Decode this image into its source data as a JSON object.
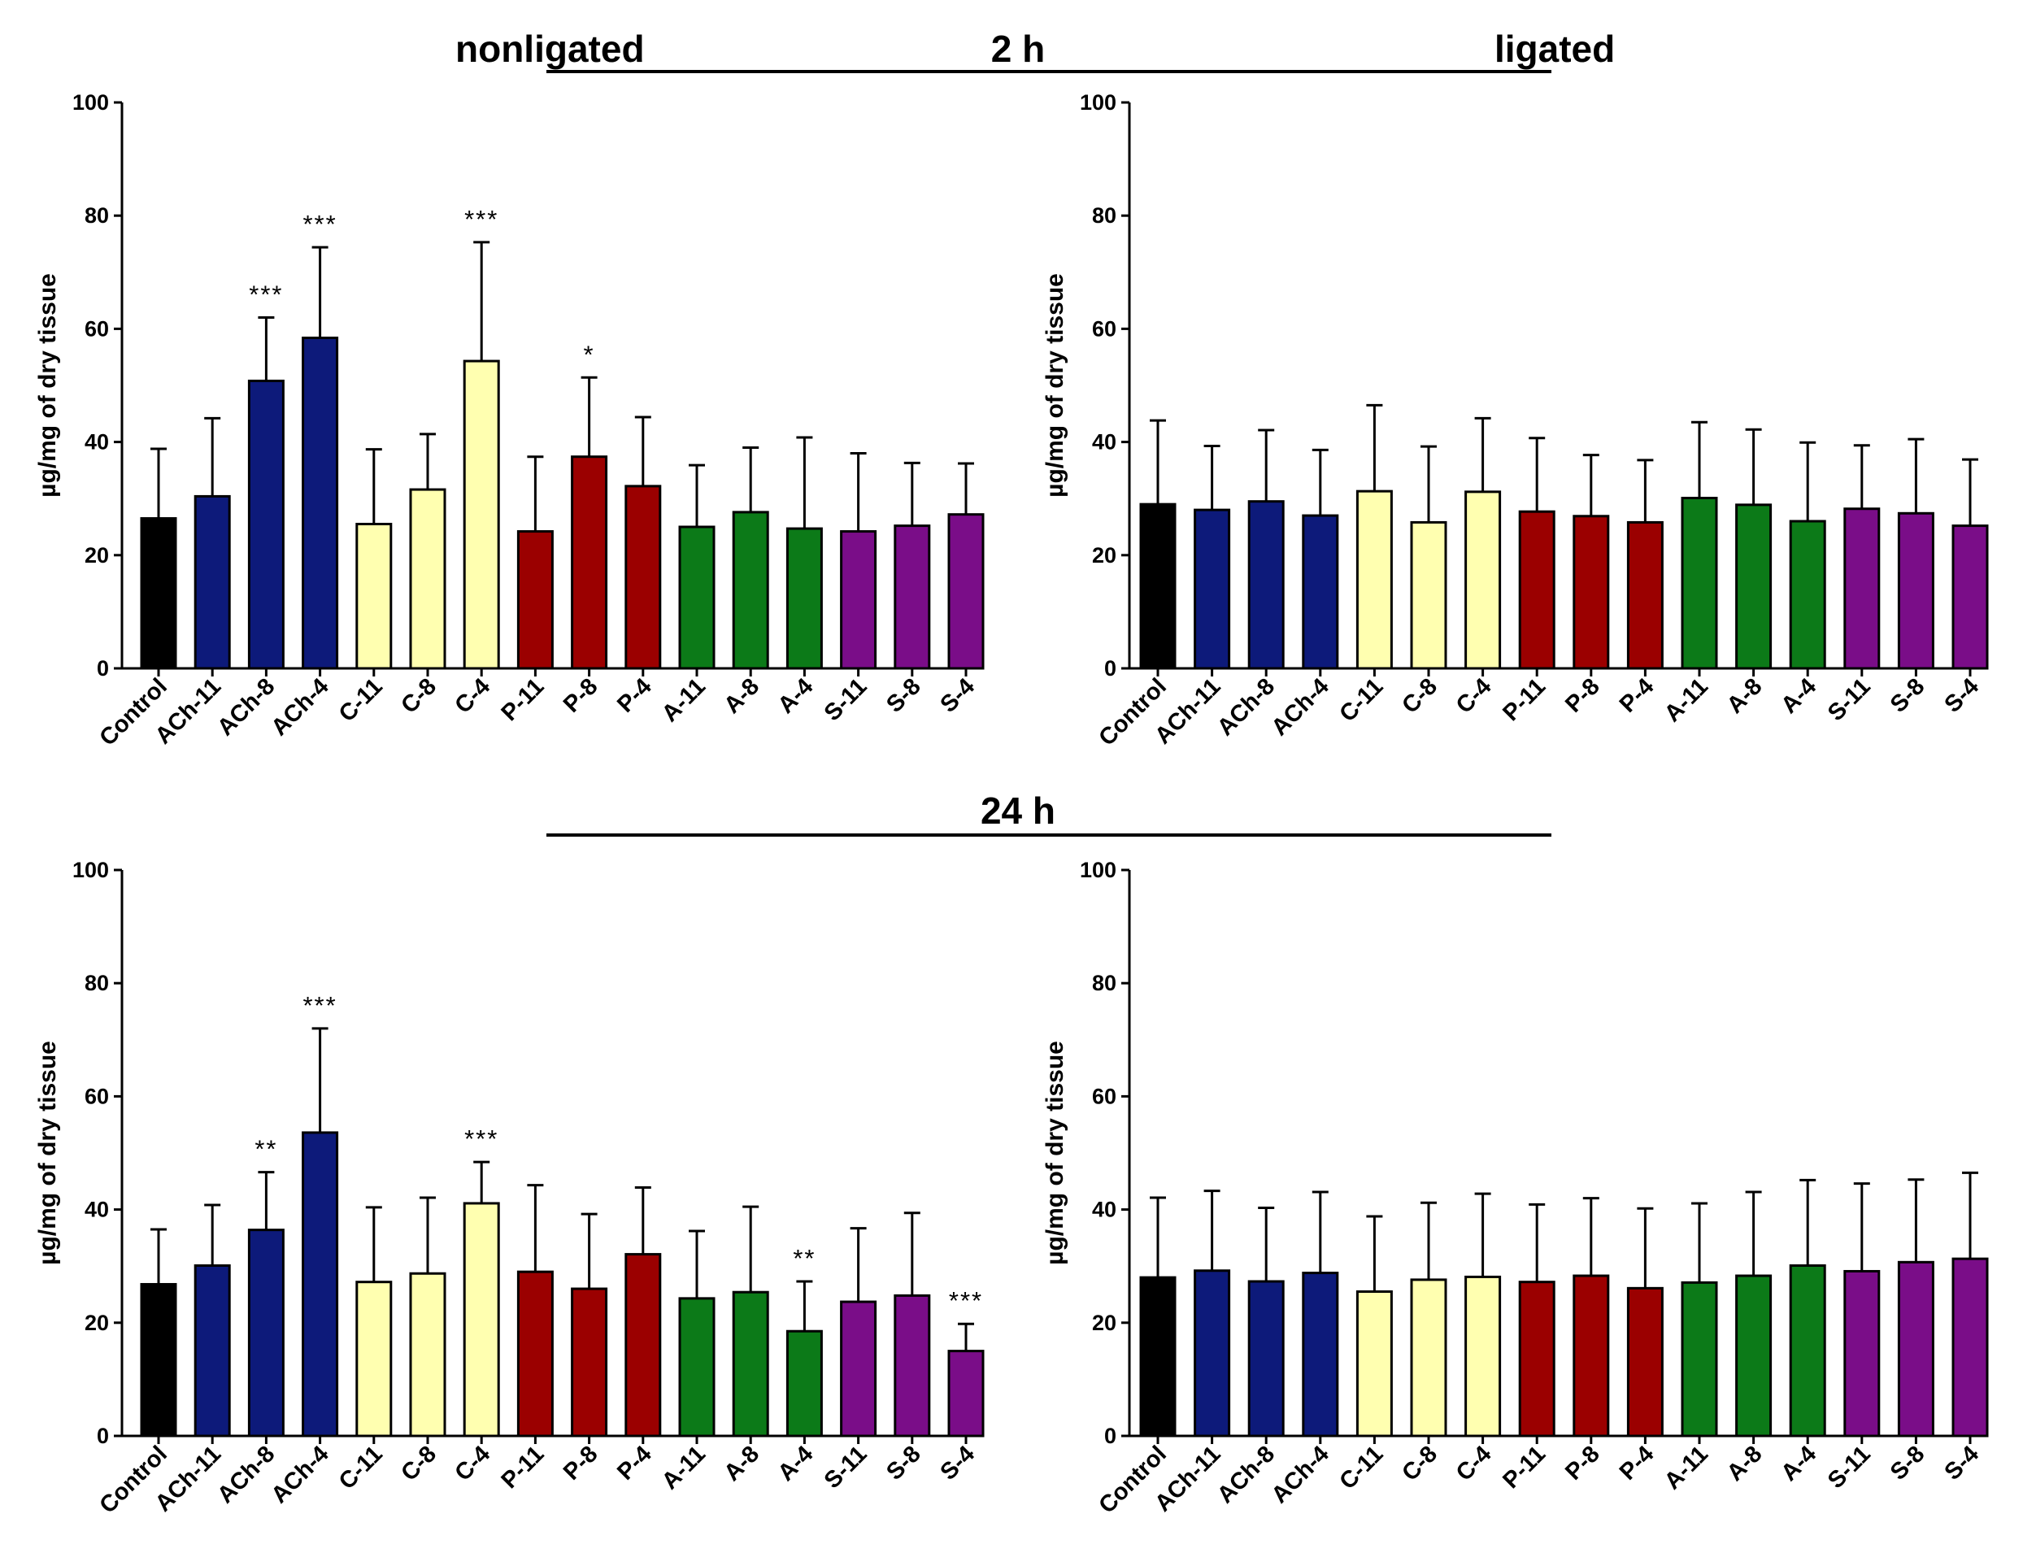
{
  "headers": {
    "nonligated": "nonligated",
    "ligated": "ligated",
    "time_2h": "2 h",
    "time_24h": "24 h"
  },
  "colors": {
    "Control": "#000000",
    "ACh": "#0d1a7a",
    "C": "#ffffb0",
    "P": "#9b0000",
    "A": "#0c7a18",
    "S": "#7a0d88"
  },
  "chart_data": [
    {
      "type": "bar",
      "panel": "2 h nonligated",
      "categories": [
        "Control",
        "ACh-11",
        "ACh-8",
        "ACh-4",
        "C-11",
        "C-8",
        "C-4",
        "P-11",
        "P-8",
        "P-4",
        "A-11",
        "A-8",
        "A-4",
        "S-11",
        "S-8",
        "S-4"
      ],
      "values": [
        26.5,
        30.4,
        50.8,
        58.4,
        25.5,
        31.6,
        54.3,
        24.2,
        37.4,
        32.2,
        25.0,
        27.6,
        24.7,
        24.2,
        25.2,
        27.2
      ],
      "errors": [
        12.3,
        13.8,
        11.2,
        16.0,
        13.2,
        9.8,
        21.0,
        13.2,
        14.0,
        12.2,
        10.9,
        11.4,
        16.1,
        13.8,
        11.1,
        9.0
      ],
      "significance": [
        "",
        "",
        "***",
        "***",
        "",
        "",
        "***",
        "",
        "*",
        "",
        "",
        "",
        "",
        "",
        "",
        ""
      ],
      "ylabel": "µg/mg of dry tissue",
      "ylim": [
        0,
        100
      ],
      "yticks": [
        0,
        20,
        40,
        60,
        80,
        100
      ]
    },
    {
      "type": "bar",
      "panel": "2 h ligated",
      "categories": [
        "Control",
        "ACh-11",
        "ACh-8",
        "ACh-4",
        "C-11",
        "C-8",
        "C-4",
        "P-11",
        "P-8",
        "P-4",
        "A-11",
        "A-8",
        "A-4",
        "S-11",
        "S-8",
        "S-4"
      ],
      "values": [
        29.0,
        28.0,
        29.5,
        27.0,
        31.3,
        25.8,
        31.2,
        27.7,
        26.9,
        25.8,
        30.1,
        28.9,
        26.0,
        28.2,
        27.4,
        25.2
      ],
      "errors": [
        14.8,
        11.3,
        12.6,
        11.6,
        15.2,
        13.4,
        13.0,
        13.0,
        10.8,
        11.0,
        13.4,
        13.3,
        13.9,
        11.2,
        13.1,
        11.7
      ],
      "significance": [
        "",
        "",
        "",
        "",
        "",
        "",
        "",
        "",
        "",
        "",
        "",
        "",
        "",
        "",
        "",
        ""
      ],
      "ylabel": "µg/mg of dry tissue",
      "ylim": [
        0,
        100
      ],
      "yticks": [
        0,
        20,
        40,
        60,
        80,
        100
      ]
    },
    {
      "type": "bar",
      "panel": "24 h nonligated",
      "categories": [
        "Control",
        "ACh-11",
        "ACh-8",
        "ACh-4",
        "C-11",
        "C-8",
        "C-4",
        "P-11",
        "P-8",
        "P-4",
        "A-11",
        "A-8",
        "A-4",
        "S-11",
        "S-8",
        "S-4"
      ],
      "values": [
        26.8,
        30.1,
        36.4,
        53.6,
        27.2,
        28.7,
        41.1,
        29.0,
        26.0,
        32.1,
        24.3,
        25.4,
        18.5,
        23.7,
        24.8,
        15.0
      ],
      "errors": [
        9.7,
        10.7,
        10.2,
        18.4,
        13.2,
        13.4,
        7.3,
        15.3,
        13.2,
        11.8,
        11.9,
        15.1,
        8.8,
        13.0,
        14.6,
        4.8
      ],
      "significance": [
        "",
        "",
        "**",
        "***",
        "",
        "",
        "***",
        "",
        "",
        "",
        "",
        "",
        "**",
        "",
        "",
        "***"
      ],
      "ylabel": "µg/mg of dry tissue",
      "ylim": [
        0,
        100
      ],
      "yticks": [
        0,
        20,
        40,
        60,
        80,
        100
      ]
    },
    {
      "type": "bar",
      "panel": "24 h ligated",
      "categories": [
        "Control",
        "ACh-11",
        "ACh-8",
        "ACh-4",
        "C-11",
        "C-8",
        "C-4",
        "P-11",
        "P-8",
        "P-4",
        "A-11",
        "A-8",
        "A-4",
        "S-11",
        "S-8",
        "S-4"
      ],
      "values": [
        28.0,
        29.2,
        27.3,
        28.8,
        25.5,
        27.6,
        28.1,
        27.2,
        28.3,
        26.1,
        27.1,
        28.3,
        30.1,
        29.1,
        30.7,
        31.3
      ],
      "errors": [
        14.1,
        14.1,
        13.0,
        14.3,
        13.3,
        13.6,
        14.7,
        13.7,
        13.7,
        14.1,
        14.0,
        14.8,
        15.1,
        15.5,
        14.6,
        15.2
      ],
      "significance": [
        "",
        "",
        "",
        "",
        "",
        "",
        "",
        "",
        "",
        "",
        "",
        "",
        "",
        "",
        "",
        ""
      ],
      "ylabel": "µg/mg of dry tissue",
      "ylim": [
        0,
        100
      ],
      "yticks": [
        0,
        20,
        40,
        60,
        80,
        100
      ]
    }
  ]
}
